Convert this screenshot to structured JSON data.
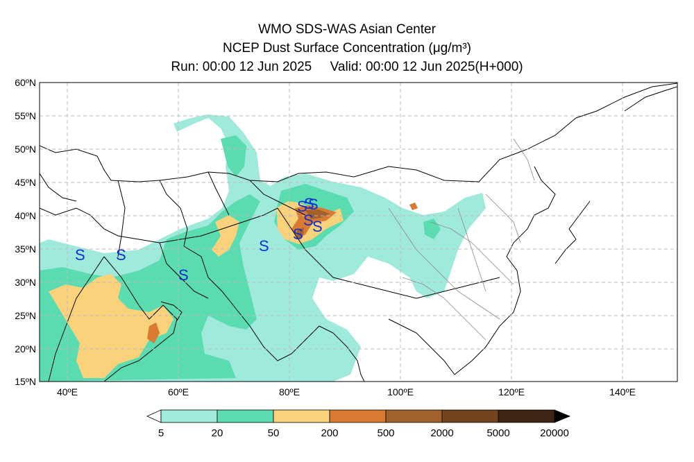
{
  "title": {
    "line1": "WMO SDS-WAS Asian Center",
    "line2": "NCEP Dust Surface Concentration (μg/m³)",
    "line3": "Run: 00:00 12 Jun 2025     Valid: 00:00 12 Jun 2025(H+000)"
  },
  "axes": {
    "lon_labels": [
      "40ºE",
      "60ºE",
      "80ºE",
      "100ºE",
      "120ºE",
      "140ºE"
    ],
    "lat_labels": [
      "15ºN",
      "20ºN",
      "25ºN",
      "30ºN",
      "35ºN",
      "40ºN",
      "45ºN",
      "50ºN",
      "55ºN",
      "60ºN"
    ],
    "lon_range": [
      35,
      150
    ],
    "lat_range": [
      15,
      60
    ]
  },
  "markers": {
    "symbol": "S",
    "color": "#1030d0"
  },
  "colorbar": {
    "labels": [
      "5",
      "20",
      "50",
      "200",
      "500",
      "2000",
      "5000",
      "20000"
    ],
    "colors": [
      "#a0eadc",
      "#5adcb0",
      "#fad27c",
      "#d87a32",
      "#a0612a",
      "#76441c",
      "#3e2412"
    ]
  }
}
